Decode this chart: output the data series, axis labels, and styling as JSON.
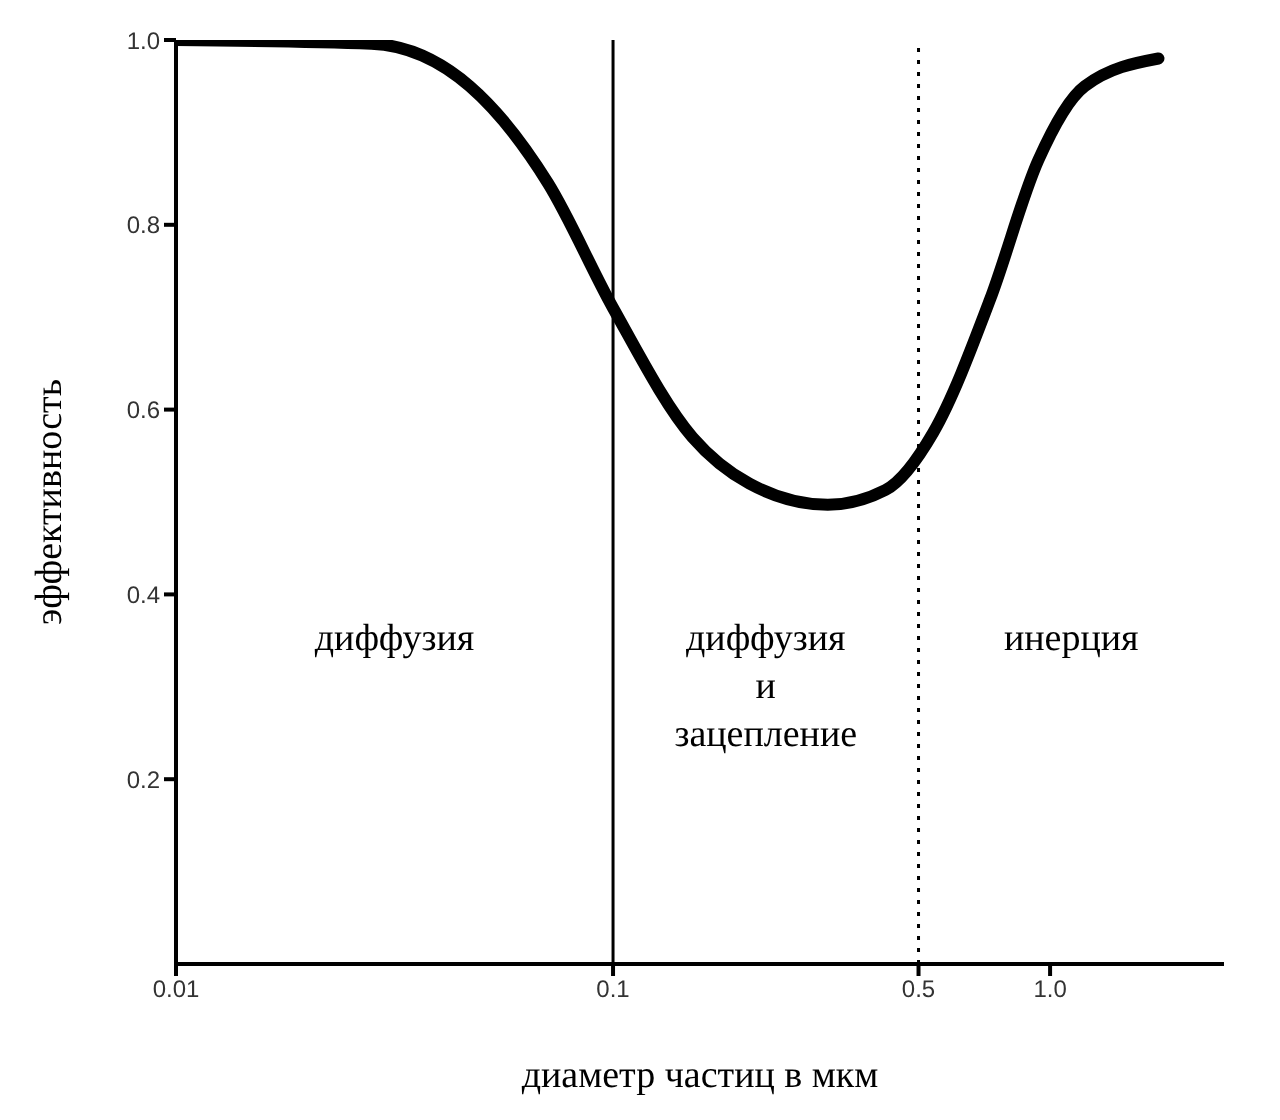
{
  "chart_data": {
    "type": "line",
    "xlabel": "диаметр частиц в мкм",
    "ylabel": "эффективность",
    "x": [
      0.01,
      0.028,
      0.047,
      0.071,
      0.1,
      0.152,
      0.205,
      0.31,
      0.42,
      0.54,
      0.73,
      0.94,
      1.2,
      1.77
    ],
    "series": [
      {
        "color": "#000000",
        "values": [
          1.0,
          0.996,
          0.95,
          0.845,
          0.71,
          0.57,
          0.52,
          0.497,
          0.513,
          0.575,
          0.72,
          0.87,
          0.95,
          0.98
        ]
      }
    ],
    "log": "x",
    "xlim": [
      0.01,
      2.5
    ],
    "xticks": [
      0.01,
      0.1,
      0.5,
      {
        "value": 1,
        "label": "1.0"
      }
    ],
    "ylim": [
      0,
      1
    ],
    "yticks": [
      0.2,
      0.4,
      0.6,
      0.8,
      {
        "value": 1,
        "label": "1.0"
      }
    ],
    "grid": false,
    "marker": "none",
    "line_style": "solid",
    "ref_lines": [
      {
        "axis": "x",
        "value": 0.1,
        "color": "#000000",
        "line_style": "solid"
      },
      {
        "axis": "x",
        "value": 0.5,
        "color": "#000000",
        "line_style": "dotted"
      }
    ],
    "annotations": [
      "диффузия",
      "диффузия\nи\nзацепление",
      "инерция"
    ]
  }
}
